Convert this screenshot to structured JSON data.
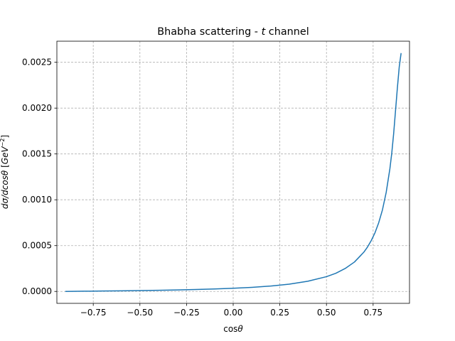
{
  "chart_data": {
    "type": "line",
    "title": "Bhabha scattering - t channel",
    "title_parts": [
      "Bhabha scattering - ",
      "t",
      " channel"
    ],
    "xlabel": "cosθ",
    "xlabel_parts": [
      "cos",
      "θ"
    ],
    "ylabel": "dσ/dcosθ   [GeV⁻²]",
    "ylabel_parts": [
      "dσ/dcos",
      "θ",
      "   [",
      "GeV",
      "−2",
      "]"
    ],
    "xlim": [
      -0.945,
      0.945
    ],
    "ylim": [
      -0.00013,
      0.00273
    ],
    "grid": true,
    "xticks": [
      -0.75,
      -0.5,
      -0.25,
      0.0,
      0.25,
      0.5,
      0.75
    ],
    "xtick_labels": [
      "−0.75",
      "−0.50",
      "−0.25",
      "0.00",
      "0.25",
      "0.50",
      "0.75"
    ],
    "yticks": [
      0.0,
      0.0005,
      0.001,
      0.0015,
      0.002,
      0.0025
    ],
    "ytick_labels": [
      "0.0000",
      "0.0005",
      "0.0010",
      "0.0015",
      "0.0020",
      "0.0025"
    ],
    "series": [
      {
        "color": "#1f77b4",
        "x": [
          -0.9,
          -0.8,
          -0.7,
          -0.6,
          -0.5,
          -0.4,
          -0.3,
          -0.2,
          -0.1,
          0.0,
          0.1,
          0.2,
          0.3,
          0.4,
          0.5,
          0.55,
          0.6,
          0.65,
          0.7,
          0.72,
          0.74,
          0.76,
          0.78,
          0.8,
          0.82,
          0.84,
          0.85,
          0.86,
          0.87,
          0.88,
          0.89,
          0.9
        ],
        "y": [
          1e-07,
          2.4e-06,
          4.5e-06,
          6.8e-06,
          9.5e-06,
          1.25e-05,
          1.62e-05,
          2.08e-05,
          2.67e-05,
          3.42e-05,
          4.45e-05,
          5.88e-05,
          7.96e-05,
          0.000111,
          0.000161,
          0.000198,
          0.00025,
          0.000321,
          0.000428,
          0.000485,
          0.000555,
          0.00064,
          0.00075,
          0.00089,
          0.00108,
          0.00134,
          0.00151,
          0.00172,
          0.00197,
          0.00222,
          0.00245,
          0.0026
        ]
      }
    ]
  }
}
